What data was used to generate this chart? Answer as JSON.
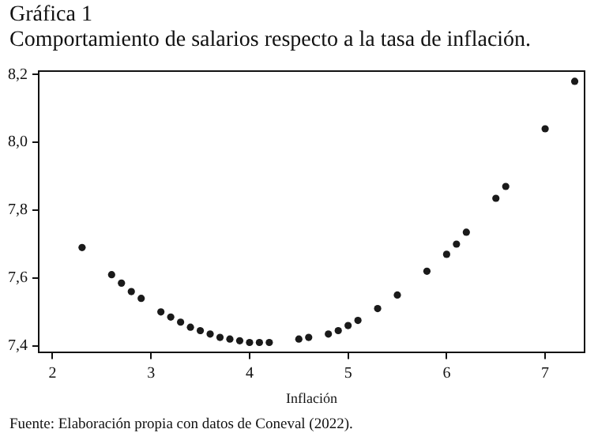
{
  "chart_data": {
    "type": "scatter",
    "title": "Gráfica 1",
    "subtitle": "Comportamiento de salarios respecto a la tasa de inflación.",
    "xlabel": "Inflación",
    "annotations": [
      "Fuente: Elaboración propia con datos de Coneval (2022)."
    ],
    "x": [
      2.3,
      2.6,
      2.7,
      2.8,
      2.9,
      3.1,
      3.2,
      3.3,
      3.4,
      3.5,
      3.6,
      3.7,
      3.8,
      3.9,
      4.0,
      4.1,
      4.2,
      4.5,
      4.6,
      4.8,
      4.9,
      5.0,
      5.1,
      5.3,
      5.5,
      5.8,
      6.0,
      6.1,
      6.2,
      6.5,
      6.6,
      7.0,
      7.3
    ],
    "series": [
      {
        "color": "#1a1a1a",
        "values": [
          7.69,
          7.61,
          7.585,
          7.56,
          7.54,
          7.5,
          7.485,
          7.47,
          7.455,
          7.445,
          7.435,
          7.425,
          7.42,
          7.415,
          7.41,
          7.41,
          7.41,
          7.42,
          7.425,
          7.435,
          7.445,
          7.46,
          7.475,
          7.51,
          7.55,
          7.62,
          7.67,
          7.7,
          7.735,
          7.835,
          7.87,
          8.04,
          8.18
        ]
      }
    ],
    "xlim": [
      1.86,
      7.4
    ],
    "xticks": [
      2,
      3,
      4,
      5,
      6,
      7
    ],
    "ylim": [
      7.38,
      8.21
    ],
    "yticks": [
      {
        "value": 7.4,
        "label": "7,4"
      },
      {
        "value": 7.6,
        "label": "7,6"
      },
      {
        "value": 7.8,
        "label": "7,8"
      },
      {
        "value": 8.0,
        "label": "8,0"
      },
      {
        "value": 8.2,
        "label": "8,2"
      }
    ],
    "grid": false,
    "legend": false,
    "marker": "circle"
  }
}
